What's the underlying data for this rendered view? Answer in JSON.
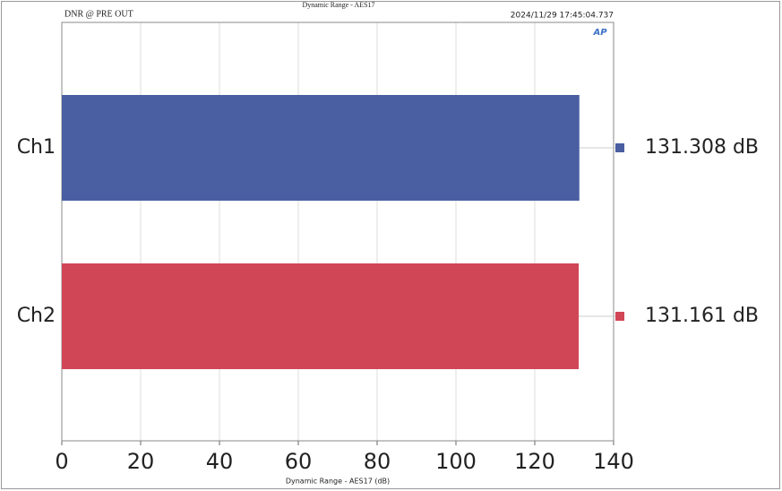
{
  "chart_data": {
    "type": "bar",
    "orientation": "horizontal",
    "title": "Dynamic Range - AES17",
    "subtitle": "DNR @ PRE OUT",
    "timestamp": "2024/11/29 17:45:04.737",
    "logo": "AP",
    "x_label": "Dynamic Range - AES17 (dB)",
    "categories": [
      "Ch1",
      "Ch2"
    ],
    "series": [
      {
        "name": "Dynamic Range",
        "colors": [
          "#4a5fa1",
          "#d14656"
        ],
        "values": [
          131.308,
          131.161
        ],
        "value_labels": [
          "131.308 dB",
          "131.161 dB"
        ]
      }
    ],
    "xlim": [
      0,
      140
    ],
    "xticks": [
      0,
      20,
      40,
      60,
      80,
      100,
      120,
      140
    ],
    "grid": true
  }
}
